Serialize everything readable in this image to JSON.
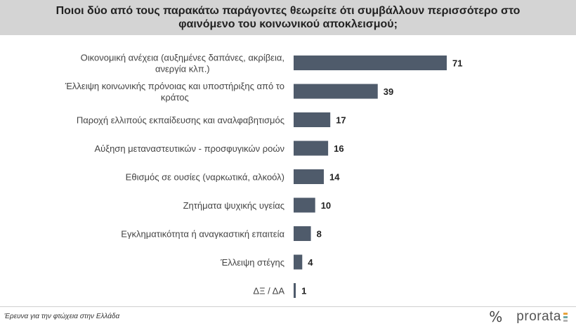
{
  "header": {
    "title": "Ποιοι δύο από τους παρακάτω παράγοντες θεωρείτε ότι συμβάλλουν περισσότερο στο φαινόμενο του κοινωνικού αποκλεισμού;"
  },
  "chart_data": {
    "type": "bar",
    "orientation": "horizontal",
    "categories": [
      "Οικονομική ανέχεια (αυξημένες δαπάνες, ακρίβεια, ανεργία κλπ.)",
      "Έλλειψη κοινωνικής πρόνοιας και υποστήριξης από το κράτος",
      "Παροχή ελλιπούς εκπαίδευσης και αναλφαβητισμός",
      "Αύξηση μεταναστευτικών - προσφυγικών ροών",
      "Εθισμός σε ουσίες (ναρκωτικά, αλκοόλ)",
      "Ζητήματα ψυχικής υγείας",
      "Εγκληματικότητα ή αναγκαστική επαιτεία",
      "Έλλειψη στέγης",
      "ΔΞ / ΔΑ"
    ],
    "values": [
      71,
      39,
      17,
      16,
      14,
      10,
      8,
      4,
      1
    ],
    "bar_color": "#4f5b6b",
    "xlim": [
      0,
      80
    ],
    "grid": false,
    "legend": "none"
  },
  "footer": {
    "source": "Έρευνα για την φτώχεια στην Ελλάδα"
  },
  "logo": {
    "symbol": "%",
    "word": "prorata",
    "bar_colors": [
      "#e8a33d",
      "#6fa8a5",
      "#b5b5b5"
    ]
  }
}
